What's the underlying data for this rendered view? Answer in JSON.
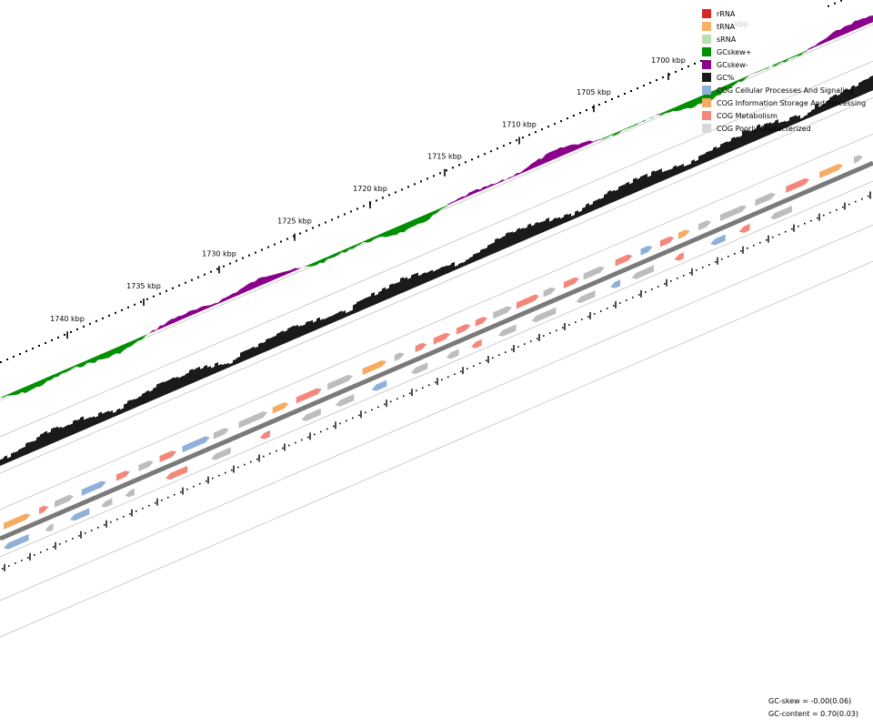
{
  "legend": {
    "items": [
      {
        "label": "rRNA",
        "color": "#d62728"
      },
      {
        "label": "tRNA",
        "color": "#f7b267"
      },
      {
        "label": "sRNA",
        "color": "#b7e0b0"
      },
      {
        "label": "GCskew+",
        "color": "#008f00"
      },
      {
        "label": "GCskew-",
        "color": "#8b008b"
      },
      {
        "label": "GC%",
        "color": "#1a1a1a"
      },
      {
        "label": "COG Cellular Processes And Signaling",
        "color": "#8fb0d8"
      },
      {
        "label": "COG Information Storage And Processing",
        "color": "#f5ab62"
      },
      {
        "label": "COG Metabolism",
        "color": "#f4877a"
      },
      {
        "label": "COG Poorly Characterized",
        "color": "#d8d8d8"
      }
    ]
  },
  "ticks": [
    "1700 kbp",
    "1705 kbp",
    "1710 kbp",
    "1715 kbp",
    "1720 kbp",
    "1725 kbp",
    "1730 kbp",
    "1735 kbp",
    "1740 kbp"
  ],
  "partial_tick": "kbp",
  "stats": {
    "gc_skew": "GC-skew = -0.00(0.06)",
    "gc_content": "GC-content = 0.70(0.03)"
  },
  "colors": {
    "skew_pos": "#008f00",
    "skew_neg": "#8b008b",
    "gc": "#1a1a1a",
    "backbone": "#7a7a7a",
    "ring": "#b0b0b0",
    "ticks": "#000000"
  }
}
